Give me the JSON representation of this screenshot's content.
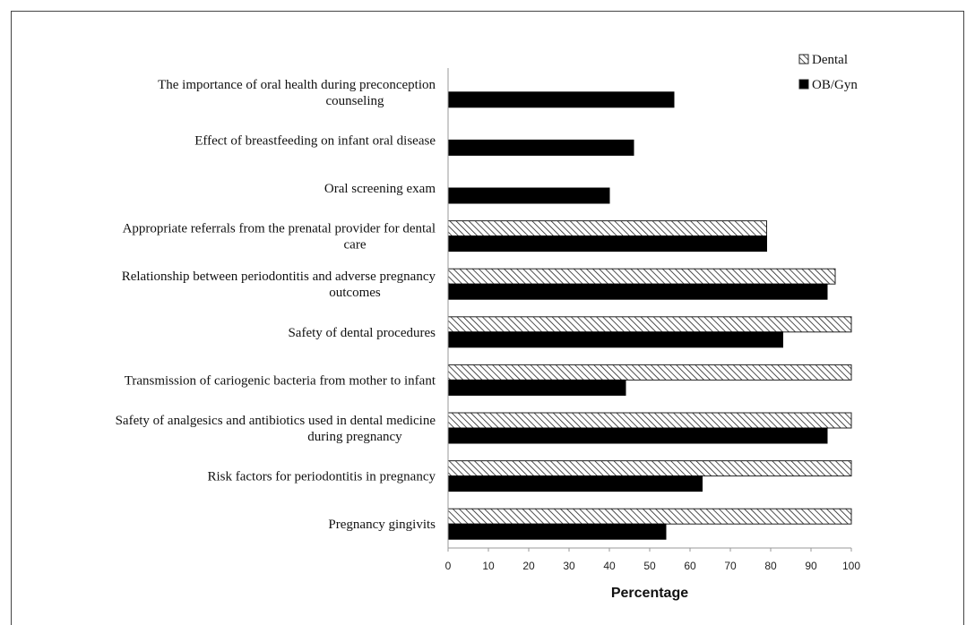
{
  "chart_data": {
    "type": "bar",
    "orientation": "horizontal",
    "categories": [
      [
        "The importance of oral health during preconception",
        "counseling"
      ],
      [
        "Effect of breastfeeding on infant oral disease"
      ],
      [
        "Oral screening exam"
      ],
      [
        "Appropriate referrals from the prenatal provider for dental",
        "care"
      ],
      [
        "Relationship between periodontitis and adverse pregnancy",
        "outcomes"
      ],
      [
        "Safety of dental procedures"
      ],
      [
        "Transmission of cariogenic bacteria from mother to infant"
      ],
      [
        "Safety of analgesics and antibiotics used in dental medicine",
        "during pregnancy"
      ],
      [
        "Risk factors for periodontitis in pregnancy"
      ],
      [
        "Pregnancy gingivits"
      ]
    ],
    "series": [
      {
        "name": "Dental",
        "values": [
          null,
          null,
          null,
          79,
          96,
          100,
          100,
          100,
          100,
          100
        ],
        "pattern": "hatched",
        "color": "#ffffff"
      },
      {
        "name": "OB/Gyn",
        "values": [
          56,
          46,
          40,
          79,
          94,
          83,
          44,
          94,
          63,
          54
        ],
        "pattern": "solid",
        "color": "#000000"
      }
    ],
    "xlabel": "Percentage",
    "ylabel": "",
    "xlim": [
      0,
      100
    ],
    "xticks": [
      "0",
      "10",
      "20",
      "30",
      "40",
      "50",
      "60",
      "70",
      "80",
      "90",
      "100"
    ],
    "grid": false,
    "legend_position": "top-right"
  }
}
